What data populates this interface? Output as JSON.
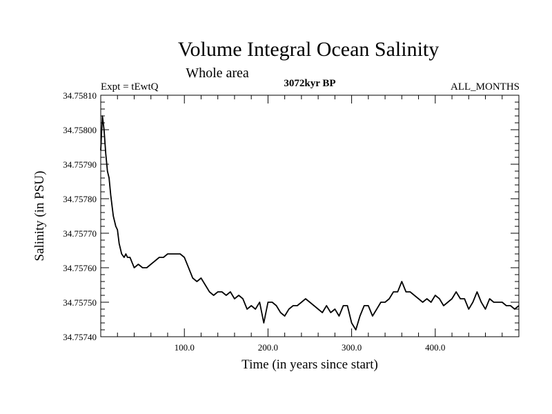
{
  "chart_data": {
    "type": "line",
    "title": "Volume Integral Ocean Salinity",
    "subtitle": "Whole area",
    "experiment": "Expt = tEwtQ",
    "period": "3072kyr BP",
    "months": "ALL_MONTHS",
    "xlabel": "Time (in years since start)",
    "ylabel": "Salinity (in PSU)",
    "xlim": [
      0,
      500
    ],
    "ylim": [
      34.7574,
      34.7581
    ],
    "xticks": [
      100,
      200,
      300,
      400
    ],
    "xtick_labels": [
      "100.0",
      "200.0",
      "300.0",
      "400.0"
    ],
    "yticks": [
      34.7574,
      34.7575,
      34.7576,
      34.7577,
      34.7578,
      34.7579,
      34.758,
      34.7581
    ],
    "ytick_labels": [
      "34.75740",
      "34.75750",
      "34.75760",
      "34.75770",
      "34.75780",
      "34.75790",
      "34.75800",
      "34.75810"
    ],
    "series": [
      {
        "name": "salinity",
        "x": [
          0,
          2,
          4,
          6,
          8,
          10,
          12,
          15,
          18,
          20,
          22,
          25,
          28,
          30,
          32,
          35,
          40,
          45,
          50,
          55,
          60,
          65,
          70,
          75,
          80,
          85,
          90,
          95,
          100,
          105,
          110,
          115,
          120,
          125,
          130,
          135,
          140,
          145,
          150,
          155,
          160,
          165,
          170,
          175,
          180,
          185,
          190,
          195,
          200,
          205,
          210,
          215,
          220,
          225,
          230,
          235,
          240,
          245,
          250,
          255,
          260,
          265,
          270,
          275,
          280,
          285,
          290,
          295,
          300,
          305,
          310,
          315,
          320,
          325,
          330,
          335,
          340,
          345,
          350,
          355,
          360,
          365,
          370,
          375,
          380,
          385,
          390,
          395,
          400,
          405,
          410,
          415,
          420,
          425,
          430,
          435,
          440,
          445,
          450,
          455,
          460,
          465,
          470,
          475,
          480,
          485,
          490,
          495,
          500
        ],
        "y": [
          34.75794,
          34.75804,
          34.758,
          34.75793,
          34.75788,
          34.75786,
          34.75781,
          34.75775,
          34.75772,
          34.75771,
          34.75767,
          34.75764,
          34.75763,
          34.75764,
          34.75763,
          34.75763,
          34.7576,
          34.75761,
          34.7576,
          34.7576,
          34.75761,
          34.75762,
          34.75763,
          34.75763,
          34.75764,
          34.75764,
          34.75764,
          34.75764,
          34.75763,
          34.7576,
          34.75757,
          34.75756,
          34.75757,
          34.75755,
          34.75753,
          34.75752,
          34.75753,
          34.75753,
          34.75752,
          34.75753,
          34.75751,
          34.75752,
          34.75751,
          34.75748,
          34.75749,
          34.75748,
          34.7575,
          34.75744,
          34.7575,
          34.7575,
          34.75749,
          34.75747,
          34.75746,
          34.75748,
          34.75749,
          34.75749,
          34.7575,
          34.75751,
          34.7575,
          34.75749,
          34.75748,
          34.75747,
          34.75749,
          34.75747,
          34.75748,
          34.75746,
          34.75749,
          34.75749,
          34.75744,
          34.75742,
          34.75746,
          34.75749,
          34.75749,
          34.75746,
          34.75748,
          34.7575,
          34.7575,
          34.75751,
          34.75753,
          34.75753,
          34.75756,
          34.75753,
          34.75753,
          34.75752,
          34.75751,
          34.7575,
          34.75751,
          34.7575,
          34.75752,
          34.75751,
          34.75749,
          34.7575,
          34.75751,
          34.75753,
          34.75751,
          34.75751,
          34.75748,
          34.7575,
          34.75753,
          34.7575,
          34.75748,
          34.75751,
          34.7575,
          34.7575,
          34.7575,
          34.75749,
          34.75749,
          34.75748,
          34.75749
        ]
      }
    ]
  }
}
